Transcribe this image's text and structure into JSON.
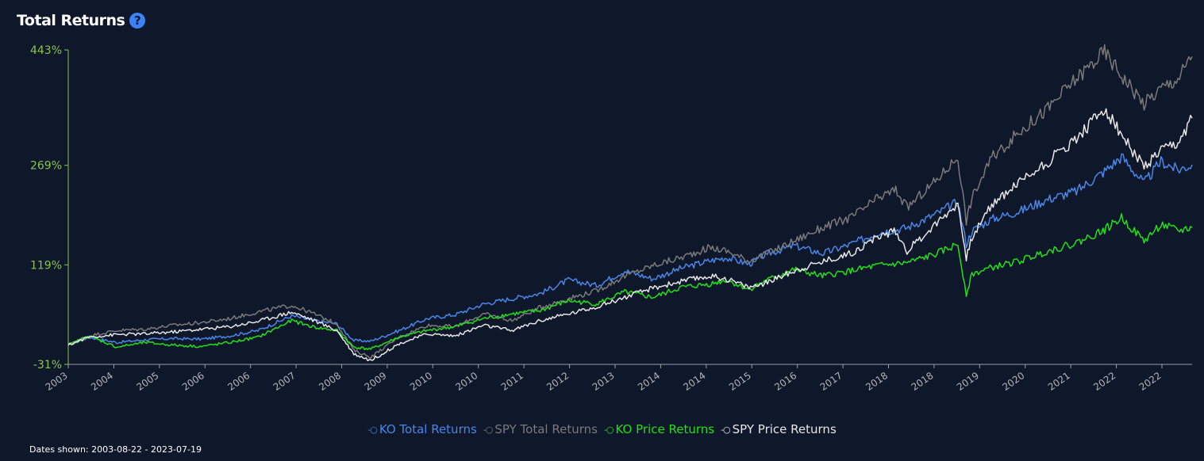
{
  "header": {
    "title": "Total Returns",
    "help_icon": "?"
  },
  "footer": {
    "dates_label": "Dates shown: 2003-08-22 - 2023-07-19"
  },
  "colors": {
    "background": "#0f172a",
    "axis": "#8bc34a",
    "ko_total": "#4a86e8",
    "spy_total": "#7a7a7a",
    "ko_price": "#22e01a",
    "spy_price": "#e6e6e6"
  },
  "chart_data": {
    "type": "line",
    "ylim": [
      -31,
      443
    ],
    "y_ticks": [
      "443%",
      "269%",
      "119%",
      "-31%"
    ],
    "y_tick_values": [
      443,
      269,
      119,
      -31
    ],
    "x_tick_labels": [
      "2003",
      "2004",
      "2005",
      "2006",
      "2006",
      "2007",
      "2008",
      "2009",
      "2010",
      "2010",
      "2011",
      "2012",
      "2013",
      "2014",
      "2014",
      "2015",
      "2016",
      "2017",
      "2018",
      "2018",
      "2019",
      "2020",
      "2021",
      "2022",
      "2022"
    ],
    "x_range": [
      2003.64,
      2023.55
    ],
    "grid": false,
    "legend_position": "bottom",
    "series": [
      {
        "name": "KO Total Returns",
        "color": "#4a86e8",
        "points": [
          [
            2003.64,
            -2
          ],
          [
            2004.0,
            10
          ],
          [
            2004.5,
            2
          ],
          [
            2005.0,
            6
          ],
          [
            2005.5,
            8
          ],
          [
            2006.0,
            7
          ],
          [
            2006.5,
            12
          ],
          [
            2007.0,
            20
          ],
          [
            2007.6,
            42
          ],
          [
            2008.0,
            35
          ],
          [
            2008.4,
            30
          ],
          [
            2008.7,
            5
          ],
          [
            2009.0,
            4
          ],
          [
            2009.5,
            20
          ],
          [
            2010.0,
            38
          ],
          [
            2010.5,
            44
          ],
          [
            2011.0,
            60
          ],
          [
            2011.5,
            68
          ],
          [
            2012.0,
            76
          ],
          [
            2012.5,
            96
          ],
          [
            2013.0,
            88
          ],
          [
            2013.5,
            110
          ],
          [
            2014.0,
            98
          ],
          [
            2014.5,
            114
          ],
          [
            2015.0,
            125
          ],
          [
            2015.3,
            130
          ],
          [
            2015.7,
            120
          ],
          [
            2016.0,
            135
          ],
          [
            2016.5,
            148
          ],
          [
            2017.0,
            136
          ],
          [
            2017.5,
            150
          ],
          [
            2018.0,
            168
          ],
          [
            2018.5,
            175
          ],
          [
            2019.0,
            195
          ],
          [
            2019.4,
            214
          ],
          [
            2019.55,
            150
          ],
          [
            2019.65,
            170
          ],
          [
            2020.0,
            188
          ],
          [
            2020.5,
            200
          ],
          [
            2021.0,
            218
          ],
          [
            2021.5,
            230
          ],
          [
            2022.0,
            260
          ],
          [
            2022.3,
            282
          ],
          [
            2022.7,
            242
          ],
          [
            2023.0,
            275
          ],
          [
            2023.3,
            262
          ],
          [
            2023.55,
            270
          ]
        ]
      },
      {
        "name": "SPY Total Returns",
        "color": "#7a7a7a",
        "points": [
          [
            2003.64,
            -2
          ],
          [
            2004.0,
            12
          ],
          [
            2004.5,
            20
          ],
          [
            2005.0,
            22
          ],
          [
            2005.5,
            28
          ],
          [
            2006.0,
            32
          ],
          [
            2006.5,
            38
          ],
          [
            2007.0,
            48
          ],
          [
            2007.6,
            58
          ],
          [
            2008.0,
            45
          ],
          [
            2008.4,
            30
          ],
          [
            2008.7,
            -10
          ],
          [
            2009.0,
            -20
          ],
          [
            2009.5,
            10
          ],
          [
            2010.0,
            28
          ],
          [
            2010.5,
            26
          ],
          [
            2011.0,
            45
          ],
          [
            2011.5,
            35
          ],
          [
            2012.0,
            55
          ],
          [
            2012.5,
            68
          ],
          [
            2013.0,
            80
          ],
          [
            2013.5,
            102
          ],
          [
            2014.0,
            118
          ],
          [
            2014.5,
            130
          ],
          [
            2015.0,
            145
          ],
          [
            2015.3,
            140
          ],
          [
            2015.7,
            125
          ],
          [
            2016.0,
            135
          ],
          [
            2016.5,
            155
          ],
          [
            2017.0,
            175
          ],
          [
            2017.5,
            190
          ],
          [
            2018.0,
            220
          ],
          [
            2018.3,
            232
          ],
          [
            2018.5,
            205
          ],
          [
            2019.0,
            245
          ],
          [
            2019.4,
            282
          ],
          [
            2019.55,
            185
          ],
          [
            2019.65,
            220
          ],
          [
            2020.0,
            280
          ],
          [
            2020.5,
            320
          ],
          [
            2021.0,
            355
          ],
          [
            2021.5,
            400
          ],
          [
            2022.0,
            440
          ],
          [
            2022.3,
            405
          ],
          [
            2022.7,
            362
          ],
          [
            2023.0,
            385
          ],
          [
            2023.3,
            400
          ],
          [
            2023.55,
            433
          ]
        ]
      },
      {
        "name": "KO Price Returns",
        "color": "#22e01a",
        "points": [
          [
            2003.64,
            -2
          ],
          [
            2004.0,
            12
          ],
          [
            2004.5,
            -5
          ],
          [
            2005.0,
            2
          ],
          [
            2005.5,
            -2
          ],
          [
            2006.0,
            -4
          ],
          [
            2006.5,
            2
          ],
          [
            2007.0,
            10
          ],
          [
            2007.6,
            35
          ],
          [
            2008.0,
            25
          ],
          [
            2008.4,
            20
          ],
          [
            2008.7,
            -5
          ],
          [
            2009.0,
            -8
          ],
          [
            2009.5,
            10
          ],
          [
            2010.0,
            20
          ],
          [
            2010.5,
            26
          ],
          [
            2011.0,
            38
          ],
          [
            2011.5,
            45
          ],
          [
            2012.0,
            50
          ],
          [
            2012.5,
            65
          ],
          [
            2013.0,
            60
          ],
          [
            2013.5,
            78
          ],
          [
            2014.0,
            70
          ],
          [
            2014.5,
            85
          ],
          [
            2015.0,
            90
          ],
          [
            2015.3,
            96
          ],
          [
            2015.7,
            82
          ],
          [
            2016.0,
            95
          ],
          [
            2016.5,
            112
          ],
          [
            2017.0,
            102
          ],
          [
            2017.5,
            110
          ],
          [
            2018.0,
            118
          ],
          [
            2018.5,
            122
          ],
          [
            2019.0,
            135
          ],
          [
            2019.4,
            150
          ],
          [
            2019.55,
            75
          ],
          [
            2019.65,
            105
          ],
          [
            2020.0,
            115
          ],
          [
            2020.5,
            125
          ],
          [
            2021.0,
            140
          ],
          [
            2021.5,
            152
          ],
          [
            2022.0,
            172
          ],
          [
            2022.3,
            190
          ],
          [
            2022.7,
            155
          ],
          [
            2023.0,
            180
          ],
          [
            2023.3,
            170
          ],
          [
            2023.55,
            175
          ]
        ]
      },
      {
        "name": "SPY Price Returns",
        "color": "#e6e6e6",
        "points": [
          [
            2003.64,
            -2
          ],
          [
            2004.0,
            10
          ],
          [
            2004.5,
            14
          ],
          [
            2005.0,
            15
          ],
          [
            2005.5,
            18
          ],
          [
            2006.0,
            22
          ],
          [
            2006.5,
            26
          ],
          [
            2007.0,
            34
          ],
          [
            2007.6,
            48
          ],
          [
            2008.0,
            35
          ],
          [
            2008.4,
            20
          ],
          [
            2008.7,
            -15
          ],
          [
            2009.0,
            -25
          ],
          [
            2009.5,
            0
          ],
          [
            2010.0,
            15
          ],
          [
            2010.5,
            12
          ],
          [
            2011.0,
            28
          ],
          [
            2011.5,
            20
          ],
          [
            2012.0,
            35
          ],
          [
            2012.5,
            45
          ],
          [
            2013.0,
            56
          ],
          [
            2013.5,
            70
          ],
          [
            2014.0,
            84
          ],
          [
            2014.5,
            94
          ],
          [
            2015.0,
            102
          ],
          [
            2015.3,
            98
          ],
          [
            2015.7,
            85
          ],
          [
            2016.0,
            92
          ],
          [
            2016.5,
            110
          ],
          [
            2017.0,
            124
          ],
          [
            2017.5,
            136
          ],
          [
            2018.0,
            162
          ],
          [
            2018.3,
            170
          ],
          [
            2018.5,
            140
          ],
          [
            2019.0,
            180
          ],
          [
            2019.4,
            212
          ],
          [
            2019.55,
            130
          ],
          [
            2019.65,
            160
          ],
          [
            2020.0,
            210
          ],
          [
            2020.5,
            245
          ],
          [
            2021.0,
            275
          ],
          [
            2021.5,
            310
          ],
          [
            2022.0,
            355
          ],
          [
            2022.3,
            315
          ],
          [
            2022.7,
            265
          ],
          [
            2023.0,
            290
          ],
          [
            2023.3,
            300
          ],
          [
            2023.55,
            340
          ]
        ]
      }
    ]
  }
}
